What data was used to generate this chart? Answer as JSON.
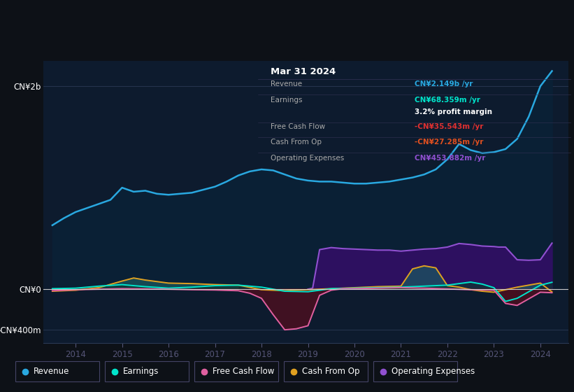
{
  "bg_color": "#0d1117",
  "plot_bg_color": "#0d1b2e",
  "yticks_labels": [
    "CN¥2b",
    "CN¥0",
    "-CN¥400m"
  ],
  "yticks_values": [
    2000000000,
    0,
    -400000000
  ],
  "xticks": [
    2014,
    2015,
    2016,
    2017,
    2018,
    2019,
    2020,
    2021,
    2022,
    2023,
    2024
  ],
  "ylim": [
    -530000000,
    2250000000
  ],
  "xlim": [
    2013.3,
    2024.6
  ],
  "legend": [
    {
      "label": "Revenue",
      "color": "#29a8e0"
    },
    {
      "label": "Earnings",
      "color": "#00e5cc"
    },
    {
      "label": "Free Cash Flow",
      "color": "#e060a0"
    },
    {
      "label": "Cash From Op",
      "color": "#e0a020"
    },
    {
      "label": "Operating Expenses",
      "color": "#9050d0"
    }
  ],
  "infobox": {
    "title": "Mar 31 2024",
    "rows": [
      {
        "label": "Revenue",
        "value": "CN¥2.149b /yr",
        "value_color": "#29a8e0"
      },
      {
        "label": "Earnings",
        "value": "CN¥68.359m /yr",
        "value_color": "#00e5cc"
      },
      {
        "label": "",
        "value": "3.2% profit margin",
        "value_color": "#ffffff"
      },
      {
        "label": "Free Cash Flow",
        "value": "-CN¥35.543m /yr",
        "value_color": "#e03030"
      },
      {
        "label": "Cash From Op",
        "value": "-CN¥27.285m /yr",
        "value_color": "#e05020"
      },
      {
        "label": "Operating Expenses",
        "value": "CN¥453.882m /yr",
        "value_color": "#9050d0"
      }
    ]
  },
  "revenue_x": [
    2013.5,
    2013.75,
    2014.0,
    2014.25,
    2014.5,
    2014.75,
    2015.0,
    2015.25,
    2015.5,
    2015.75,
    2016.0,
    2016.25,
    2016.5,
    2016.75,
    2017.0,
    2017.25,
    2017.5,
    2017.75,
    2018.0,
    2018.25,
    2018.5,
    2018.75,
    2019.0,
    2019.25,
    2019.5,
    2019.75,
    2020.0,
    2020.25,
    2020.5,
    2020.75,
    2021.0,
    2021.25,
    2021.5,
    2021.75,
    2022.0,
    2022.25,
    2022.5,
    2022.75,
    2023.0,
    2023.25,
    2023.5,
    2023.75,
    2024.0,
    2024.25
  ],
  "revenue_y": [
    630,
    700,
    760,
    800,
    840,
    880,
    1000,
    960,
    970,
    940,
    930,
    940,
    950,
    980,
    1010,
    1060,
    1120,
    1160,
    1180,
    1170,
    1130,
    1090,
    1070,
    1060,
    1060,
    1050,
    1040,
    1040,
    1050,
    1060,
    1080,
    1100,
    1130,
    1180,
    1280,
    1430,
    1370,
    1340,
    1350,
    1380,
    1480,
    1700,
    2000,
    2149
  ],
  "op_exp_x": [
    2019.0,
    2019.1,
    2019.25,
    2019.5,
    2019.75,
    2020.0,
    2020.25,
    2020.5,
    2020.75,
    2021.0,
    2021.25,
    2021.5,
    2021.75,
    2022.0,
    2022.25,
    2022.5,
    2022.75,
    2023.0,
    2023.1,
    2023.25,
    2023.5,
    2023.75,
    2024.0,
    2024.25
  ],
  "op_exp_y": [
    0,
    10,
    390,
    410,
    400,
    395,
    390,
    385,
    385,
    375,
    385,
    395,
    400,
    415,
    450,
    440,
    425,
    420,
    415,
    415,
    290,
    285,
    290,
    454
  ],
  "earnings_x": [
    2013.5,
    2014.0,
    2014.5,
    2015.0,
    2015.5,
    2016.0,
    2016.5,
    2017.0,
    2017.5,
    2018.0,
    2018.5,
    2019.0,
    2019.5,
    2020.0,
    2020.5,
    2021.0,
    2021.5,
    2022.0,
    2022.5,
    2022.75,
    2023.0,
    2023.25,
    2023.5,
    2024.0,
    2024.25
  ],
  "earnings_y": [
    5,
    10,
    30,
    45,
    25,
    10,
    20,
    35,
    40,
    20,
    -20,
    -25,
    5,
    10,
    15,
    20,
    30,
    40,
    70,
    50,
    15,
    -120,
    -90,
    40,
    68
  ],
  "fcf_x": [
    2013.5,
    2014.0,
    2014.5,
    2015.0,
    2015.5,
    2016.0,
    2016.5,
    2017.0,
    2017.5,
    2017.75,
    2018.0,
    2018.25,
    2018.5,
    2018.75,
    2019.0,
    2019.25,
    2019.5,
    2019.75,
    2020.0,
    2020.5,
    2021.0,
    2021.5,
    2022.0,
    2022.5,
    2023.0,
    2023.25,
    2023.5,
    2024.0,
    2024.25
  ],
  "fcf_y": [
    -15,
    -5,
    0,
    5,
    3,
    0,
    -5,
    -8,
    -15,
    -40,
    -90,
    -250,
    -400,
    -390,
    -360,
    -60,
    -10,
    5,
    5,
    10,
    15,
    10,
    3,
    -5,
    -10,
    -140,
    -160,
    -30,
    -35
  ],
  "cfo_x": [
    2013.5,
    2014.0,
    2014.5,
    2015.0,
    2015.25,
    2015.5,
    2016.0,
    2016.5,
    2017.0,
    2017.5,
    2018.0,
    2018.5,
    2019.0,
    2019.5,
    2020.0,
    2020.5,
    2021.0,
    2021.25,
    2021.5,
    2021.75,
    2022.0,
    2022.25,
    2022.5,
    2022.75,
    2023.0,
    2023.5,
    2024.0,
    2024.25
  ],
  "cfo_y": [
    -20,
    -10,
    15,
    80,
    110,
    90,
    60,
    55,
    45,
    40,
    -5,
    -15,
    -5,
    5,
    15,
    25,
    30,
    200,
    230,
    210,
    35,
    20,
    -5,
    -20,
    -30,
    20,
    60,
    -27
  ],
  "rev_fill_color": "#0a2035",
  "op_fill_color": "#2d1060",
  "earn_fill_color": "#1a4540",
  "fcf_neg_fill_color": "#4a1020",
  "cfo_fill_color": "#1a3a10"
}
